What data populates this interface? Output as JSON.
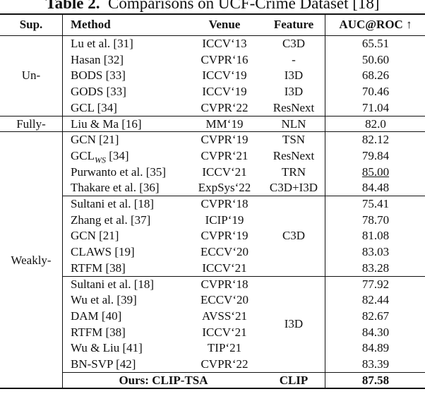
{
  "title": {
    "label": "Table 2.",
    "text": "Comparisons on UCF-Crime Dataset [18]"
  },
  "table": {
    "header": [
      "Sup.",
      "Method",
      "Venue",
      "Feature",
      "AUC@ROC ↑"
    ],
    "groups": [
      {
        "sup": "Un-",
        "blocks": [
          {
            "rows": [
              {
                "method": "Lu et al. [31]",
                "venue": "ICCV‘13",
                "feature": "C3D",
                "auc": "65.51"
              },
              {
                "method": "Hasan [32]",
                "venue": "CVPR‘16",
                "feature": "-",
                "auc": "50.60"
              },
              {
                "method": "BODS [33]",
                "venue": "ICCV‘19",
                "feature": "I3D",
                "auc": "68.26"
              },
              {
                "method": "GODS [33]",
                "venue": "ICCV‘19",
                "feature": "I3D",
                "auc": "70.46"
              },
              {
                "method": "GCL [34]",
                "venue": "CVPR‘22",
                "feature": "ResNext",
                "auc": "71.04"
              }
            ]
          }
        ]
      },
      {
        "sup": "Fully-",
        "blocks": [
          {
            "rows": [
              {
                "method": "Liu & Ma [16]",
                "venue": "MM‘19",
                "feature": "NLN",
                "auc": "82.0"
              }
            ]
          }
        ]
      },
      {
        "sup": "Weakly-",
        "blocks": [
          {
            "rows": [
              {
                "method": "GCN [21]",
                "venue": "CVPR‘19",
                "feature": "TSN",
                "auc": "82.12"
              },
              {
                "method": "GCL",
                "method_sub": "WS",
                "method_tail": " [34]",
                "venue": "CVPR‘21",
                "feature": "ResNext",
                "auc": "79.84"
              },
              {
                "method": "Purwanto et al. [35]",
                "venue": "ICCV‘21",
                "feature": "TRN",
                "auc": "85.00",
                "underline": true
              },
              {
                "method": "Thakare et al. [36]",
                "venue": "ExpSys‘22",
                "feature": "C3D+I3D",
                "auc": "84.48"
              }
            ]
          },
          {
            "feature": "C3D",
            "rows": [
              {
                "method": "Sultani et al. [18]",
                "venue": "CVPR‘18",
                "auc": "75.41"
              },
              {
                "method": "Zhang et al. [37]",
                "venue": "ICIP‘19",
                "auc": "78.70"
              },
              {
                "method": "GCN [21]",
                "venue": "CVPR‘19",
                "auc": "81.08"
              },
              {
                "method": "CLAWS [19]",
                "venue": "ECCV‘20",
                "auc": "83.03"
              },
              {
                "method": "RTFM [38]",
                "venue": "ICCV‘21",
                "auc": "83.28"
              }
            ]
          },
          {
            "feature": "I3D",
            "rows": [
              {
                "method": "Sultani et al. [18]",
                "venue": "CVPR‘18",
                "auc": "77.92"
              },
              {
                "method": "Wu et al. [39]",
                "venue": "ECCV‘20",
                "auc": "82.44"
              },
              {
                "method": "DAM [40]",
                "venue": "AVSS‘21",
                "auc": "82.67"
              },
              {
                "method": "RTFM [38]",
                "venue": "ICCV‘21",
                "auc": "84.30"
              },
              {
                "method": "Wu & Liu [41]",
                "venue": "TIP‘21",
                "auc": "84.89"
              },
              {
                "method": "BN-SVP [42]",
                "venue": "CVPR‘22",
                "auc": "83.39"
              }
            ]
          },
          {
            "rows": [
              {
                "method": "Ours: CLIP-TSA",
                "feature": "CLIP",
                "auc": "87.58",
                "bold": true
              }
            ]
          }
        ]
      }
    ]
  }
}
